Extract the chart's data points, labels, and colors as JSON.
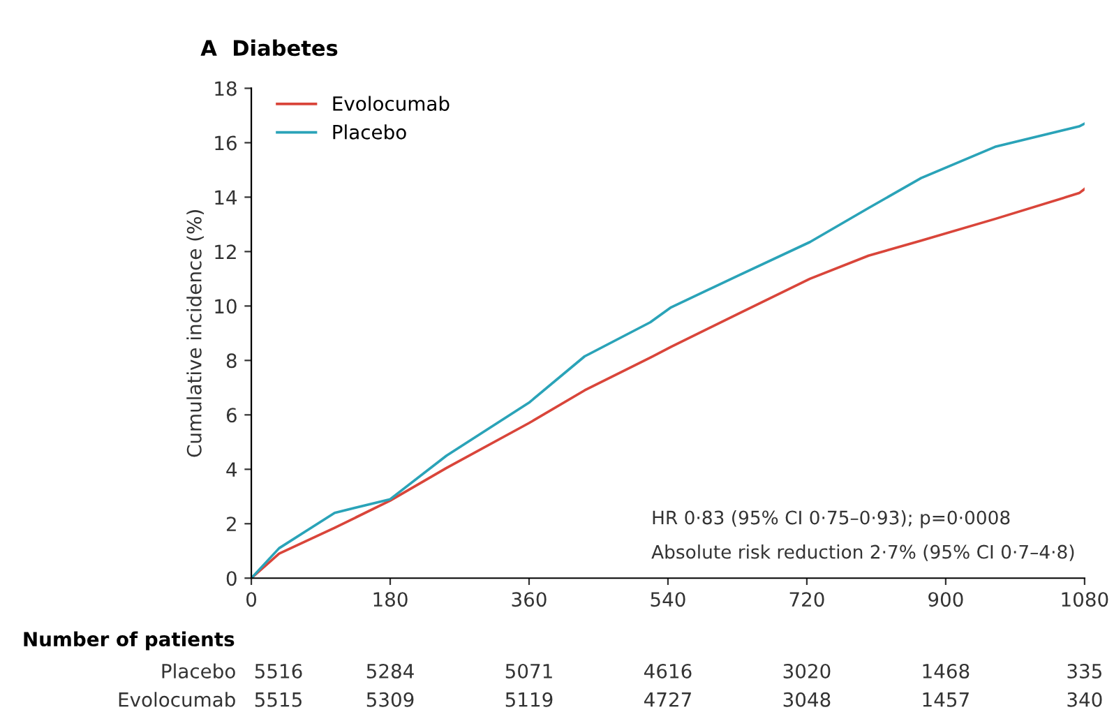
{
  "chart_data": {
    "type": "line",
    "title": "A  Diabetes",
    "ylabel": "Cumulative incidence (%)",
    "x": [
      0,
      36,
      108,
      180,
      253,
      360,
      432,
      517,
      544,
      630,
      724,
      800,
      868,
      964,
      1073,
      1080
    ],
    "series": [
      {
        "name": "Evolocumab",
        "color": "#d9453a",
        "values": [
          0,
          0.9,
          1.85,
          2.85,
          4.05,
          5.7,
          6.9,
          8.1,
          8.5,
          9.7,
          11.0,
          11.85,
          12.4,
          13.2,
          14.15,
          14.3
        ]
      },
      {
        "name": "Placebo",
        "color": "#2aa3b8",
        "values": [
          0,
          1.1,
          2.4,
          2.9,
          4.5,
          6.45,
          8.15,
          9.4,
          9.95,
          11.1,
          12.35,
          13.6,
          14.7,
          15.85,
          16.6,
          16.7
        ]
      }
    ],
    "xlim": [
      0,
      1080
    ],
    "xticks": [
      0,
      180,
      360,
      540,
      720,
      900,
      1080
    ],
    "ylim": [
      0,
      18
    ],
    "yticks": [
      0,
      2,
      4,
      6,
      8,
      10,
      12,
      14,
      16,
      18
    ],
    "grid": false,
    "legend": "top left",
    "marker": "none",
    "line_style": "solid",
    "annotations": [
      "HR 0·83 (95% CI 0·75–0·93); p=0·0008",
      "Absolute risk reduction 2·7% (95% CI 0·7–4·8)",
      "Number of patients",
      "Placebo\t5516\t5284\t5071\t4616\t3020\t1468\t335",
      "Evolocumab\t5515\t5309\t5119\t4727\t3048\t1457\t340"
    ]
  }
}
